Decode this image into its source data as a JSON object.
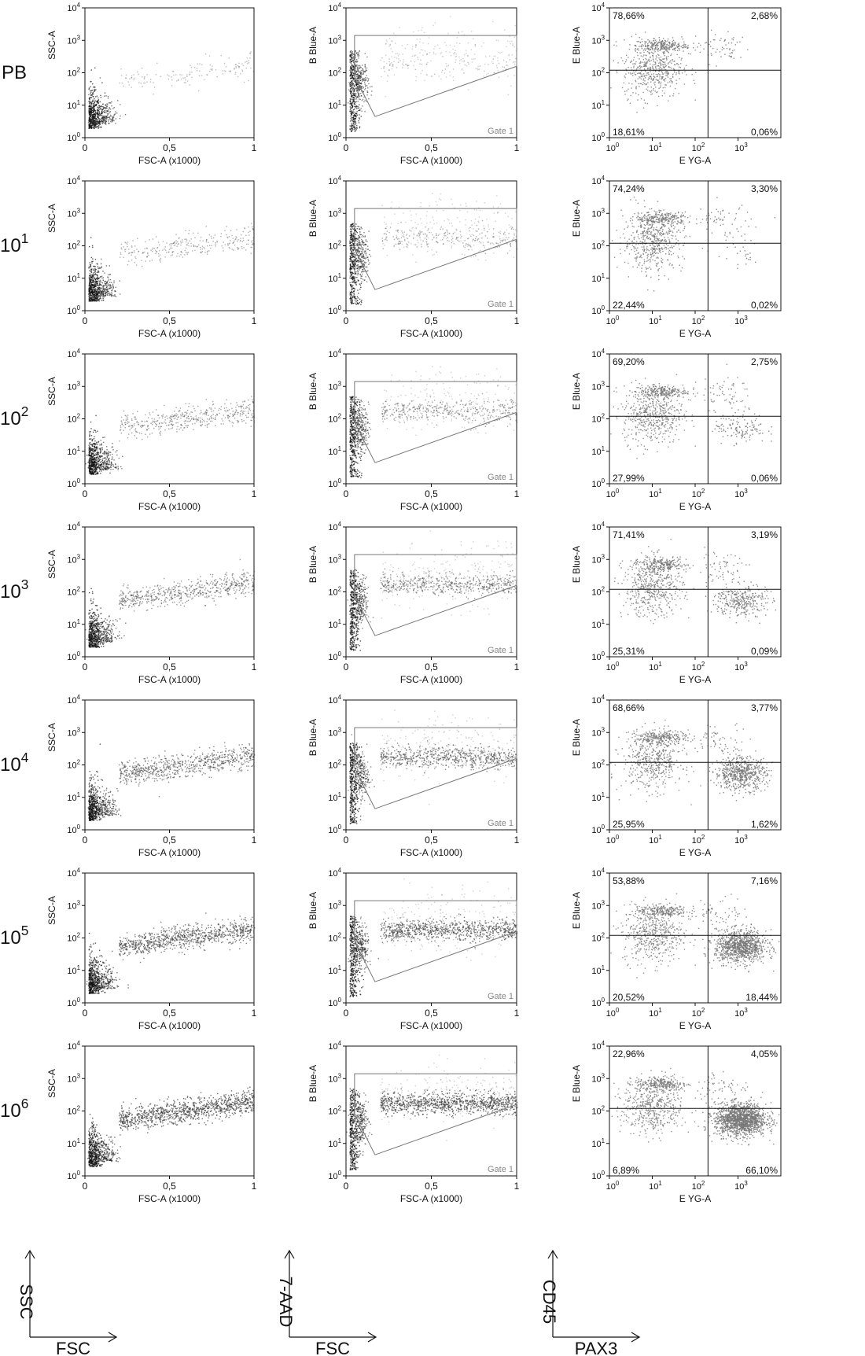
{
  "row_labels": [
    {
      "base": "PB",
      "exp": ""
    },
    {
      "base": "10",
      "exp": "1"
    },
    {
      "base": "10",
      "exp": "2"
    },
    {
      "base": "10",
      "exp": "3"
    },
    {
      "base": "10",
      "exp": "4"
    },
    {
      "base": "10",
      "exp": "5"
    },
    {
      "base": "10",
      "exp": "6"
    }
  ],
  "axis_legends": [
    {
      "y": "SSC",
      "x": "FSC"
    },
    {
      "y": "7-AAD",
      "x": "FSC"
    },
    {
      "y": "CD45",
      "x": "PAX3"
    }
  ],
  "colors": {
    "ink": "#111111",
    "dots": "#444444",
    "dense": "#777777",
    "gate": "#777777"
  },
  "chart_data": [
    {
      "type": "scatter",
      "panel": "FSC vs SSC",
      "xlabel": "FSC-A (x1000)",
      "ylabel": "SSC-A",
      "xlim": [
        0,
        1
      ],
      "ylim_log10": [
        0,
        4
      ],
      "xticks": [
        "0",
        "0,5",
        "1"
      ],
      "yticks": [
        {
          "base": "10",
          "exp": "0"
        },
        {
          "base": "10",
          "exp": "1"
        },
        {
          "base": "10",
          "exp": "2"
        },
        {
          "base": "10",
          "exp": "3"
        },
        {
          "base": "10",
          "exp": "4"
        }
      ],
      "grid": false
    },
    {
      "type": "scatter",
      "panel": "FSC vs 7-AAD with gate",
      "xlabel": "FSC-A (x1000)",
      "ylabel": "B Blue-A",
      "xlim": [
        0,
        1
      ],
      "ylim_log10": [
        0,
        4
      ],
      "xticks": [
        "0",
        "0,5",
        "1"
      ],
      "yticks": [
        {
          "base": "10",
          "exp": "0"
        },
        {
          "base": "10",
          "exp": "1"
        },
        {
          "base": "10",
          "exp": "2"
        },
        {
          "base": "10",
          "exp": "3"
        },
        {
          "base": "10",
          "exp": "4"
        }
      ],
      "gate_label": "Gate 1",
      "gate_polygon": [
        [
          0.05,
          3.15
        ],
        [
          0.05,
          1.9
        ],
        [
          0.17,
          0.65
        ],
        [
          1.0,
          2.2
        ],
        [
          1.0,
          3.15
        ]
      ],
      "grid": false
    },
    {
      "type": "scatter",
      "panel": "PAX3 vs CD45 quadrants",
      "xlabel": "E YG-A",
      "ylabel": "E Blue-A",
      "xlim_log10": [
        0,
        4
      ],
      "ylim_log10": [
        0,
        4
      ],
      "xticks": [
        {
          "base": "10",
          "exp": "0"
        },
        {
          "base": "10",
          "exp": "1"
        },
        {
          "base": "10",
          "exp": "2"
        },
        {
          "base": "10",
          "exp": "3"
        }
      ],
      "yticks": [
        {
          "base": "10",
          "exp": "0"
        },
        {
          "base": "10",
          "exp": "1"
        },
        {
          "base": "10",
          "exp": "2"
        },
        {
          "base": "10",
          "exp": "3"
        },
        {
          "base": "10",
          "exp": "4"
        }
      ],
      "quadrant_divider_log10": {
        "x": 2.3,
        "y": 2.08
      },
      "quadrant_percentages": [
        {
          "row": "PB",
          "upper_left": "78,66%",
          "upper_right": "2,68%",
          "lower_left": "18,61%",
          "lower_right": "0,06%"
        },
        {
          "row": "10^1",
          "upper_left": "74,24%",
          "upper_right": "3,30%",
          "lower_left": "22,44%",
          "lower_right": "0,02%"
        },
        {
          "row": "10^2",
          "upper_left": "69,20%",
          "upper_right": "2,75%",
          "lower_left": "27,99%",
          "lower_right": "0,06%"
        },
        {
          "row": "10^3",
          "upper_left": "71,41%",
          "upper_right": "3,19%",
          "lower_left": "25,31%",
          "lower_right": "0,09%"
        },
        {
          "row": "10^4",
          "upper_left": "68,66%",
          "upper_right": "3,77%",
          "lower_left": "25,95%",
          "lower_right": "1,62%"
        },
        {
          "row": "10^5",
          "upper_left": "53,88%",
          "upper_right": "7,16%",
          "lower_left": "20,52%",
          "lower_right": "18,44%"
        },
        {
          "row": "10^6",
          "upper_left": "22,96%",
          "upper_right": "4,05%",
          "lower_left": "6,89%",
          "lower_right": "66,10%"
        }
      ],
      "grid": false
    }
  ]
}
